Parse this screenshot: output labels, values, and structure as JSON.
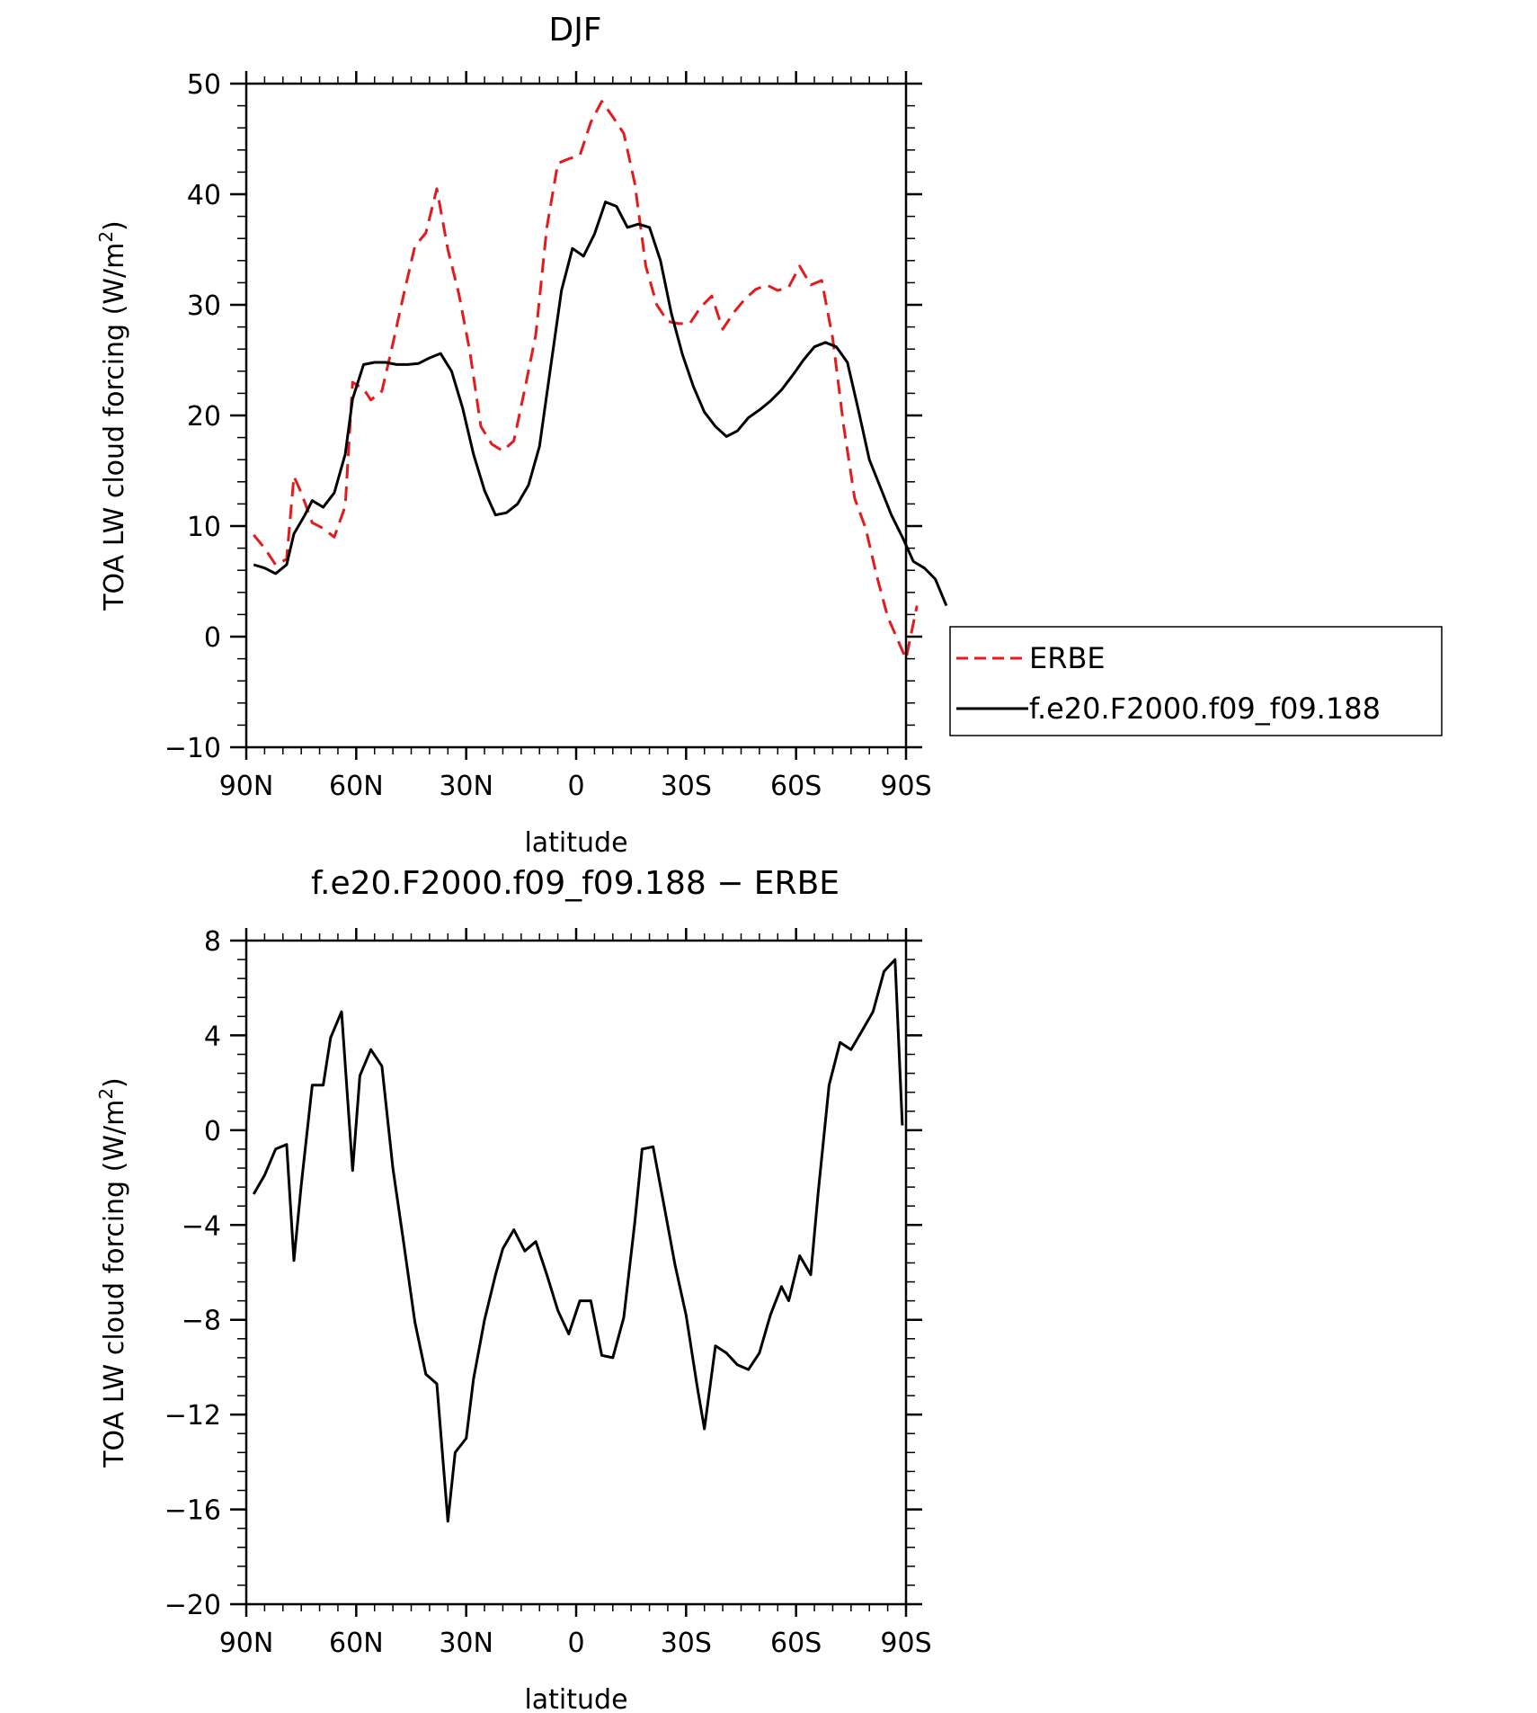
{
  "chart_data": [
    {
      "type": "line",
      "title": "DJF",
      "xlabel": "latitude",
      "ylabel_main": "TOA LW cloud forcing (W/m",
      "ylabel_sup": "2",
      "ylabel_close": ")",
      "xlim": [
        90,
        -90
      ],
      "ylim": [
        -10,
        50
      ],
      "x_ticks": [
        {
          "value": 90,
          "label": "90N"
        },
        {
          "value": 60,
          "label": "60N"
        },
        {
          "value": 30,
          "label": "30N"
        },
        {
          "value": 0,
          "label": "0"
        },
        {
          "value": -30,
          "label": "30S"
        },
        {
          "value": -60,
          "label": "60S"
        },
        {
          "value": -90,
          "label": "90S"
        }
      ],
      "y_ticks": [
        {
          "value": -10,
          "label": "−10"
        },
        {
          "value": 0,
          "label": "0"
        },
        {
          "value": 10,
          "label": "10"
        },
        {
          "value": 20,
          "label": "20"
        },
        {
          "value": 30,
          "label": "30"
        },
        {
          "value": 40,
          "label": "40"
        },
        {
          "value": 50,
          "label": "50"
        }
      ],
      "grid": false,
      "legend_position": "right",
      "series": [
        {
          "name": "ERBE",
          "color": "#e41a1c",
          "style": "dashed",
          "points": [
            [
              88,
              9.2
            ],
            [
              85,
              8
            ],
            [
              82,
              6.5
            ],
            [
              79,
              7
            ],
            [
              77,
              14.5
            ],
            [
              75,
              13
            ],
            [
              72,
              10.3
            ],
            [
              69,
              9.8
            ],
            [
              66,
              9
            ],
            [
              63,
              11.8
            ],
            [
              61,
              23
            ],
            [
              58,
              22.4
            ],
            [
              56,
              21.4
            ],
            [
              53,
              22.2
            ],
            [
              50,
              26.5
            ],
            [
              47,
              31
            ],
            [
              44,
              35.3
            ],
            [
              41,
              36.5
            ],
            [
              38,
              40.5
            ],
            [
              35,
              35
            ],
            [
              32,
              31
            ],
            [
              29,
              25.8
            ],
            [
              26,
              19
            ],
            [
              23,
              17.4
            ],
            [
              20,
              16.8
            ],
            [
              17,
              17.7
            ],
            [
              14,
              22.4
            ],
            [
              11,
              27.3
            ],
            [
              8,
              37
            ],
            [
              5,
              42.8
            ],
            [
              2,
              43.2
            ],
            [
              -1,
              43.5
            ],
            [
              -4,
              46.5
            ],
            [
              -7,
              48.4
            ],
            [
              -10,
              47
            ],
            [
              -13,
              45.5
            ],
            [
              -16,
              41
            ],
            [
              -19,
              33.5
            ],
            [
              -22,
              30
            ],
            [
              -25,
              28.5
            ],
            [
              -28,
              28.3
            ],
            [
              -31,
              28.3
            ],
            [
              -34,
              29.8
            ],
            [
              -37,
              30.8
            ],
            [
              -40,
              27.8
            ],
            [
              -43,
              29.3
            ],
            [
              -46,
              30.5
            ],
            [
              -49,
              31.4
            ],
            [
              -52,
              31.8
            ],
            [
              -55,
              31.3
            ],
            [
              -58,
              31.6
            ],
            [
              -61,
              33.5
            ],
            [
              -64,
              31.8
            ],
            [
              -67,
              32.2
            ],
            [
              -70,
              27
            ],
            [
              -73,
              19
            ],
            [
              -76,
              12.5
            ],
            [
              -79,
              9.8
            ],
            [
              -82,
              5.5
            ],
            [
              -85,
              1.8
            ],
            [
              -88,
              -0.5
            ],
            [
              -90,
              -2
            ],
            [
              -93,
              2.8
            ]
          ]
        },
        {
          "name": "f.e20.F2000.f09_f09.188",
          "color": "#000000",
          "style": "solid",
          "points": [
            [
              88,
              6.5
            ],
            [
              85,
              6.2
            ],
            [
              82,
              5.7
            ],
            [
              79,
              6.5
            ],
            [
              77,
              9.3
            ],
            [
              74,
              11
            ],
            [
              72,
              12.3
            ],
            [
              69,
              11.7
            ],
            [
              66,
              13
            ],
            [
              63,
              16.5
            ],
            [
              61,
              21.5
            ],
            [
              58,
              24.6
            ],
            [
              55,
              24.8
            ],
            [
              52,
              24.8
            ],
            [
              49,
              24.6
            ],
            [
              46,
              24.6
            ],
            [
              43,
              24.7
            ],
            [
              40,
              25.2
            ],
            [
              37,
              25.6
            ],
            [
              34,
              24
            ],
            [
              31,
              20.7
            ],
            [
              28,
              16.5
            ],
            [
              25,
              13.2
            ],
            [
              22,
              11
            ],
            [
              19,
              11.2
            ],
            [
              16,
              12
            ],
            [
              13,
              13.7
            ],
            [
              10,
              17.2
            ],
            [
              7,
              24.3
            ],
            [
              4,
              31.3
            ],
            [
              1,
              35.1
            ],
            [
              -2,
              34.4
            ],
            [
              -5,
              36.4
            ],
            [
              -8,
              39.3
            ],
            [
              -11,
              38.9
            ],
            [
              -14,
              37
            ],
            [
              -17,
              37.3
            ],
            [
              -20,
              37
            ],
            [
              -23,
              34
            ],
            [
              -26,
              29.2
            ],
            [
              -29,
              25.5
            ],
            [
              -32,
              22.6
            ],
            [
              -35,
              20.3
            ],
            [
              -38,
              19
            ],
            [
              -41,
              18.1
            ],
            [
              -44,
              18.6
            ],
            [
              -47,
              19.8
            ],
            [
              -50,
              20.5
            ],
            [
              -53,
              21.3
            ],
            [
              -56,
              22.3
            ],
            [
              -59,
              23.6
            ],
            [
              -62,
              25
            ],
            [
              -65,
              26.2
            ],
            [
              -68,
              26.6
            ],
            [
              -71,
              26.2
            ],
            [
              -74,
              24.8
            ],
            [
              -77,
              20.5
            ],
            [
              -80,
              16
            ],
            [
              -83,
              13.5
            ],
            [
              -86,
              11
            ],
            [
              -89,
              9
            ],
            [
              -92,
              6.8
            ],
            [
              -95,
              6.2
            ],
            [
              -98,
              5.2
            ],
            [
              -101,
              2.8
            ]
          ]
        }
      ]
    },
    {
      "type": "line",
      "title": "f.e20.F2000.f09_f09.188 − ERBE",
      "xlabel": "latitude",
      "ylabel_main": "TOA LW cloud forcing (W/m",
      "ylabel_sup": "2",
      "ylabel_close": ")",
      "xlim": [
        90,
        -90
      ],
      "ylim": [
        -20,
        8
      ],
      "x_ticks": [
        {
          "value": 90,
          "label": "90N"
        },
        {
          "value": 60,
          "label": "60N"
        },
        {
          "value": 30,
          "label": "30N"
        },
        {
          "value": 0,
          "label": "0"
        },
        {
          "value": -30,
          "label": "30S"
        },
        {
          "value": -60,
          "label": "60S"
        },
        {
          "value": -90,
          "label": "90S"
        }
      ],
      "y_ticks": [
        {
          "value": -20,
          "label": "−20"
        },
        {
          "value": -16,
          "label": "−16"
        },
        {
          "value": -12,
          "label": "−12"
        },
        {
          "value": -8,
          "label": "−8"
        },
        {
          "value": -4,
          "label": "−4"
        },
        {
          "value": 0,
          "label": "0"
        },
        {
          "value": 4,
          "label": "4"
        },
        {
          "value": 8,
          "label": "8"
        }
      ],
      "grid": false,
      "series": [
        {
          "color": "#000000",
          "style": "solid",
          "points": [
            [
              88,
              -2.7
            ],
            [
              85,
              -1.9
            ],
            [
              82,
              -0.8
            ],
            [
              79,
              -0.6
            ],
            [
              77,
              -5.5
            ],
            [
              75,
              -2.3
            ],
            [
              72,
              1.9
            ],
            [
              69,
              1.9
            ],
            [
              67,
              3.9
            ],
            [
              64,
              5.0
            ],
            [
              61,
              -1.7
            ],
            [
              59,
              2.3
            ],
            [
              56,
              3.4
            ],
            [
              53,
              2.7
            ],
            [
              50,
              -1.6
            ],
            [
              47,
              -4.8
            ],
            [
              44,
              -8.1
            ],
            [
              41,
              -10.3
            ],
            [
              38,
              -10.7
            ],
            [
              35,
              -16.5
            ],
            [
              33,
              -13.6
            ],
            [
              30,
              -13.0
            ],
            [
              28,
              -10.5
            ],
            [
              25,
              -8
            ],
            [
              22,
              -6.1
            ],
            [
              20,
              -5
            ],
            [
              17,
              -4.2
            ],
            [
              14,
              -5.1
            ],
            [
              11,
              -4.7
            ],
            [
              8,
              -6.1
            ],
            [
              5,
              -7.6
            ],
            [
              2,
              -8.6
            ],
            [
              -1,
              -7.2
            ],
            [
              -4,
              -7.2
            ],
            [
              -7,
              -9.5
            ],
            [
              -10,
              -9.6
            ],
            [
              -13,
              -7.9
            ],
            [
              -16,
              -3.9
            ],
            [
              -18,
              -0.8
            ],
            [
              -21,
              -0.7
            ],
            [
              -24,
              -3.2
            ],
            [
              -27,
              -5.7
            ],
            [
              -30,
              -7.8
            ],
            [
              -33,
              -10.8
            ],
            [
              -35,
              -12.6
            ],
            [
              -38,
              -9.1
            ],
            [
              -41,
              -9.4
            ],
            [
              -44,
              -9.9
            ],
            [
              -47,
              -10.1
            ],
            [
              -50,
              -9.4
            ],
            [
              -53,
              -7.8
            ],
            [
              -56,
              -6.6
            ],
            [
              -58,
              -7.2
            ],
            [
              -61,
              -5.3
            ],
            [
              -64,
              -6.1
            ],
            [
              -66,
              -2.7
            ],
            [
              -69,
              1.9
            ],
            [
              -72,
              3.7
            ],
            [
              -75,
              3.4
            ],
            [
              -78,
              4.2
            ],
            [
              -81,
              5
            ],
            [
              -84,
              6.7
            ],
            [
              -87,
              7.2
            ],
            [
              -89,
              0.2
            ]
          ]
        }
      ]
    }
  ]
}
